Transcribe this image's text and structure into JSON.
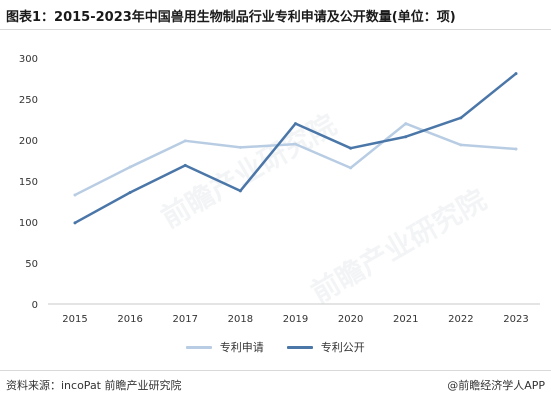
{
  "title": "图表1：2015-2023年中国兽用生物制品行业专利申请及公开数量(单位：项)",
  "source": "资料来源：incoPat 前瞻产业研究院",
  "credit": "@前瞻经济学人APP",
  "watermark": "前瞻产业研究院",
  "colors": {
    "series_apply": "#b8cde3",
    "series_publish": "#4a76a8",
    "axis": "#c8c8c8",
    "tick_text": "#333333"
  },
  "chart_data": {
    "type": "line",
    "title": "图表1：2015-2023年中国兽用生物制品行业专利申请及公开数量(单位：项)",
    "xlabel": "",
    "ylabel": "",
    "x": [
      "2015",
      "2016",
      "2017",
      "2018",
      "2019",
      "2020",
      "2021",
      "2022",
      "2023"
    ],
    "ylim": [
      0,
      300
    ],
    "yticks": [
      0,
      50,
      100,
      150,
      200,
      250,
      300
    ],
    "grid": false,
    "legend_position": "bottom",
    "series": [
      {
        "name": "专利申请",
        "color": "#b8cde3",
        "values": [
          133,
          167,
          199,
          191,
          195,
          166,
          220,
          194,
          189
        ]
      },
      {
        "name": "专利公开",
        "color": "#4a76a8",
        "values": [
          99,
          136,
          169,
          138,
          220,
          190,
          204,
          227,
          281
        ]
      }
    ]
  }
}
